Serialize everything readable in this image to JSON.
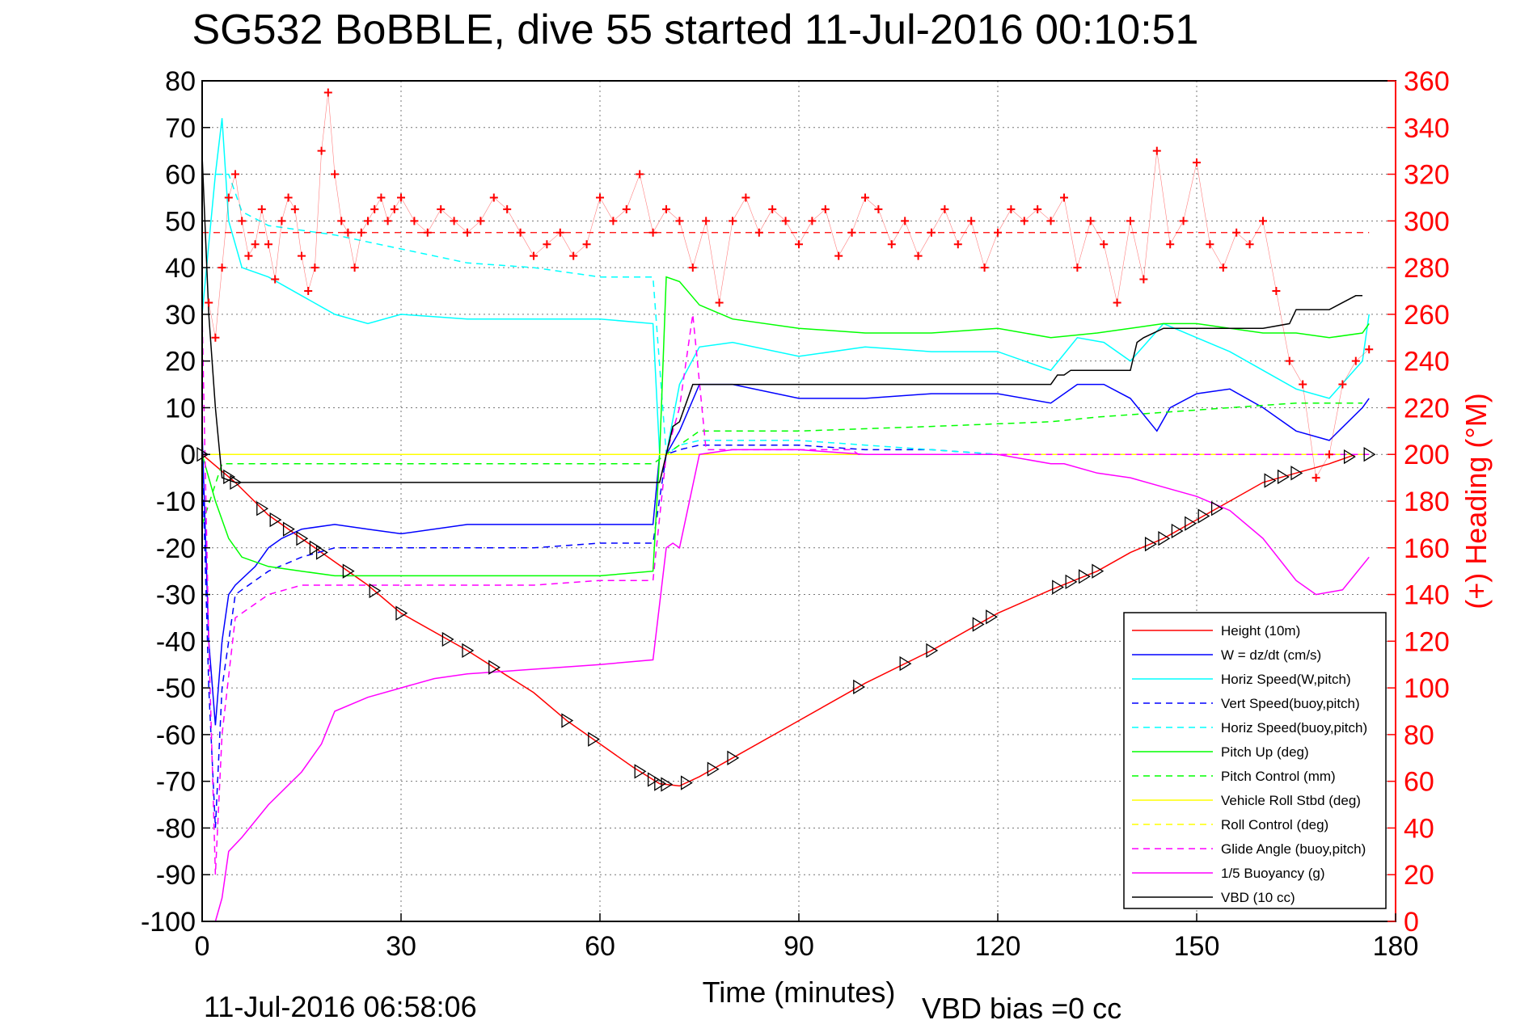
{
  "chart_data": {
    "type": "line",
    "title": "SG532 BoBBLE, dive 55 started 11-Jul-2016 00:10:51",
    "xlabel": "Time (minutes)",
    "ylabel_right": "(+) Heading (°M)",
    "xlim": [
      0,
      180
    ],
    "ylim": [
      -100,
      80
    ],
    "ylim_right": [
      0,
      360
    ],
    "x_ticks": [
      "0",
      "30",
      "60",
      "90",
      "120",
      "150",
      "180"
    ],
    "y_ticks": [
      "80",
      "70",
      "60",
      "50",
      "40",
      "30",
      "20",
      "10",
      "0",
      "-10",
      "-20",
      "-30",
      "-40",
      "-50",
      "-60",
      "-70",
      "-80",
      "-90",
      "-100"
    ],
    "y_right_ticks": [
      "360",
      "340",
      "320",
      "300",
      "280",
      "260",
      "240",
      "220",
      "200",
      "180",
      "160",
      "140",
      "120",
      "100",
      "80",
      "60",
      "40",
      "20",
      "0"
    ],
    "grid": true,
    "legend_position": "bottom-right",
    "footer_left": "11-Jul-2016 06:58:06",
    "footer_right": "VBD bias =0 cc",
    "series": [
      {
        "name": "Height (10m)",
        "color": "#ff0000",
        "dash": false,
        "x": [
          0,
          5,
          10,
          15,
          20,
          25,
          30,
          40,
          50,
          55,
          60,
          65,
          69,
          72,
          75,
          80,
          90,
          100,
          110,
          120,
          128,
          135,
          140,
          145,
          150,
          155,
          160,
          165,
          170,
          174,
          176
        ],
        "y": [
          0,
          -6,
          -13,
          -18,
          -23,
          -28,
          -34,
          -42,
          -51,
          -57,
          -62,
          -67,
          -70.5,
          -71,
          -69,
          -65,
          -57,
          -49,
          -42,
          -34,
          -29,
          -25,
          -21,
          -18,
          -14,
          -10,
          -6,
          -4,
          -2,
          0,
          0
        ]
      },
      {
        "name": "W = dz/dt (cm/s)",
        "color": "#0000ff",
        "dash": false,
        "x": [
          0,
          1,
          2,
          3,
          4,
          5,
          8,
          10,
          12,
          15,
          20,
          25,
          30,
          40,
          50,
          60,
          68,
          69,
          70,
          72,
          75,
          80,
          90,
          100,
          110,
          120,
          128,
          132,
          136,
          140,
          144,
          146,
          150,
          155,
          160,
          165,
          170,
          175,
          176
        ],
        "y": [
          5,
          -40,
          -58,
          -40,
          -30,
          -28,
          -24,
          -20,
          -18,
          -16,
          -15,
          -16,
          -17,
          -15,
          -15,
          -15,
          -15,
          0,
          0,
          5,
          15,
          15,
          12,
          12,
          13,
          13,
          11,
          15,
          15,
          12,
          5,
          10,
          13,
          14,
          10,
          5,
          3,
          10,
          12
        ]
      },
      {
        "name": "Horiz Speed(W,pitch)",
        "color": "#00ffff",
        "dash": false,
        "x": [
          0,
          2,
          3,
          4,
          6,
          10,
          15,
          20,
          25,
          30,
          40,
          50,
          60,
          68,
          69,
          70,
          72,
          75,
          80,
          90,
          100,
          110,
          120,
          128,
          132,
          136,
          140,
          145,
          150,
          155,
          160,
          165,
          170,
          175,
          176
        ],
        "y": [
          30,
          60,
          72,
          50,
          40,
          38,
          34,
          30,
          28,
          30,
          29,
          29,
          29,
          28,
          0,
          0,
          15,
          23,
          24,
          21,
          23,
          22,
          22,
          18,
          25,
          24,
          20,
          28,
          25,
          22,
          18,
          14,
          12,
          20,
          30
        ]
      },
      {
        "name": "Vert Speed(buoy,pitch)",
        "color": "#0000ff",
        "dash": true,
        "x": [
          0,
          1,
          2,
          3,
          5,
          10,
          15,
          20,
          30,
          40,
          50,
          60,
          68,
          70,
          72,
          75,
          80,
          90,
          100,
          110,
          120,
          128
        ],
        "y": [
          0,
          -50,
          -80,
          -50,
          -30,
          -25,
          -22,
          -20,
          -20,
          -20,
          -20,
          -19,
          -19,
          0,
          1,
          2,
          2,
          2,
          1,
          1,
          0,
          0
        ]
      },
      {
        "name": "Horiz Speed(buoy,pitch)",
        "color": "#00ffff",
        "dash": true,
        "x": [
          2,
          4,
          6,
          10,
          15,
          20,
          30,
          40,
          50,
          60,
          68,
          70,
          72,
          75,
          80,
          90,
          100,
          110,
          120,
          128
        ],
        "y": [
          60,
          60,
          52,
          49,
          48,
          47,
          44,
          41,
          40,
          38,
          38,
          0,
          2,
          3,
          3,
          3,
          2,
          1,
          0,
          0
        ]
      },
      {
        "name": "Pitch Up (deg)",
        "color": "#00ff00",
        "dash": false,
        "x": [
          0,
          2,
          4,
          6,
          10,
          15,
          20,
          30,
          40,
          50,
          60,
          68,
          69,
          70,
          72,
          75,
          80,
          90,
          100,
          110,
          120,
          128,
          135,
          140,
          145,
          150,
          155,
          160,
          165,
          170,
          175,
          176
        ],
        "y": [
          0,
          -10,
          -18,
          -22,
          -24,
          -25,
          -26,
          -26,
          -26,
          -26,
          -26,
          -25,
          0,
          38,
          37,
          32,
          29,
          27,
          26,
          26,
          27,
          25,
          26,
          27,
          28,
          28,
          27,
          26,
          26,
          25,
          26,
          28
        ]
      },
      {
        "name": "Pitch Control (mm)",
        "color": "#00ff00",
        "dash": true,
        "x": [
          0,
          3,
          10,
          20,
          30,
          40,
          50,
          60,
          68,
          70,
          75,
          90,
          110,
          128,
          135,
          145,
          155,
          165,
          175
        ],
        "y": [
          -15,
          -2,
          -2,
          -2,
          -2,
          -2,
          -2,
          -2,
          -2,
          0,
          5,
          5,
          6,
          7,
          8,
          9,
          10,
          11,
          11
        ]
      },
      {
        "name": "Vehicle Roll Stbd (deg)",
        "color": "#ffff00",
        "dash": false,
        "x": [
          0,
          5,
          10,
          20,
          30,
          40,
          50,
          60,
          70,
          80,
          90,
          100,
          110,
          120,
          130,
          140,
          150,
          160,
          170,
          176
        ],
        "y": [
          0,
          0,
          0,
          0,
          0,
          0,
          0,
          0,
          0,
          0,
          0,
          0,
          0,
          0,
          0,
          0,
          0,
          0,
          0,
          0
        ]
      },
      {
        "name": "Roll Control (deg)",
        "color": "#ffff00",
        "dash": true,
        "x": [
          0,
          176
        ],
        "y": [
          0,
          0
        ]
      },
      {
        "name": "Glide Angle (buoy,pitch)",
        "color": "#ff00ff",
        "dash": true,
        "x": [
          0,
          1,
          2,
          3,
          5,
          10,
          15,
          20,
          30,
          40,
          50,
          60,
          68,
          70,
          72,
          74,
          76,
          80,
          90,
          98,
          99,
          100,
          110,
          120,
          130,
          135,
          140,
          145,
          150,
          160,
          170,
          176
        ],
        "y": [
          30,
          -40,
          -90,
          -60,
          -35,
          -30,
          -28,
          -28,
          -28,
          -28,
          -28,
          -27,
          -27,
          0,
          10,
          30,
          1,
          1,
          1,
          1,
          0,
          0,
          0,
          0,
          0,
          0,
          0,
          0,
          0,
          0,
          0,
          0
        ]
      },
      {
        "name": "1/5 Buoyancy (g)",
        "color": "#ff00ff",
        "dash": false,
        "x": [
          2,
          3,
          4,
          6,
          10,
          15,
          18,
          20,
          25,
          30,
          35,
          40,
          50,
          60,
          68,
          69,
          70,
          71,
          72,
          75,
          80,
          90,
          100,
          110,
          120,
          128,
          130,
          135,
          140,
          145,
          150,
          155,
          160,
          165,
          168,
          172,
          176
        ],
        "y": [
          -100,
          -95,
          -85,
          -82,
          -75,
          -68,
          -62,
          -55,
          -52,
          -50,
          -48,
          -47,
          -46,
          -45,
          -44,
          -32,
          -20,
          -19,
          -20,
          0,
          1,
          1,
          0,
          0,
          0,
          -2,
          -2,
          -4,
          -5,
          -7,
          -9,
          -12,
          -18,
          -27,
          -30,
          -29,
          -22
        ]
      },
      {
        "name": "VBD (10 cc)",
        "color": "#000000",
        "dash": false,
        "x": [
          0,
          1,
          2,
          3,
          5,
          10,
          20,
          30,
          40,
          50,
          60,
          68,
          69,
          70,
          71,
          72,
          73,
          74,
          80,
          90,
          100,
          110,
          120,
          128,
          129,
          130,
          131,
          140,
          141,
          142,
          145,
          150,
          155,
          160,
          164,
          165,
          170,
          174,
          175
        ],
        "y": [
          64,
          30,
          10,
          -5,
          -6,
          -6,
          -6,
          -6,
          -6,
          -6,
          -6,
          -6,
          -6,
          0,
          6,
          7,
          11,
          15,
          15,
          15,
          15,
          15,
          15,
          15,
          17,
          17,
          18,
          18,
          24,
          25,
          27,
          27,
          27,
          27,
          28,
          31,
          31,
          34,
          34
        ]
      }
    ],
    "heading": {
      "name": "Heading",
      "color": "#ff0000",
      "marker": "+",
      "x": [
        1,
        2,
        3,
        4,
        5,
        6,
        7,
        8,
        9,
        10,
        11,
        12,
        13,
        14,
        15,
        16,
        17,
        18,
        19,
        20,
        21,
        22,
        23,
        24,
        25,
        26,
        27,
        28,
        29,
        30,
        32,
        34,
        36,
        38,
        40,
        42,
        44,
        46,
        48,
        50,
        52,
        54,
        56,
        58,
        60,
        62,
        64,
        66,
        68,
        70,
        72,
        74,
        76,
        78,
        80,
        82,
        84,
        86,
        88,
        90,
        92,
        94,
        96,
        98,
        100,
        102,
        104,
        106,
        108,
        110,
        112,
        114,
        116,
        118,
        120,
        122,
        124,
        126,
        128,
        130,
        132,
        134,
        136,
        138,
        140,
        142,
        144,
        146,
        148,
        150,
        152,
        154,
        156,
        158,
        160,
        162,
        164,
        166,
        168,
        170,
        172,
        174,
        176
      ],
      "y": [
        265,
        250,
        280,
        310,
        320,
        300,
        285,
        290,
        305,
        290,
        275,
        300,
        310,
        305,
        285,
        270,
        280,
        330,
        355,
        320,
        300,
        295,
        280,
        295,
        300,
        305,
        310,
        300,
        305,
        310,
        300,
        295,
        305,
        300,
        295,
        300,
        310,
        305,
        295,
        285,
        290,
        295,
        285,
        290,
        310,
        300,
        305,
        320,
        295,
        305,
        300,
        280,
        300,
        265,
        300,
        310,
        295,
        305,
        300,
        290,
        300,
        305,
        285,
        295,
        310,
        305,
        290,
        300,
        285,
        295,
        305,
        290,
        300,
        280,
        295,
        305,
        300,
        305,
        300,
        310,
        280,
        300,
        290,
        265,
        300,
        275,
        330,
        290,
        300,
        325,
        290,
        280,
        295,
        290,
        300,
        270,
        240,
        230,
        190,
        200,
        230,
        240,
        245
      ],
      "reference": 295
    },
    "height_markers_x": [
      0,
      4,
      5,
      9,
      11,
      13,
      15,
      17,
      18,
      22,
      26,
      30,
      37,
      40,
      44,
      55,
      59,
      66,
      68,
      69,
      70,
      73,
      77,
      80,
      99,
      106,
      110,
      117,
      119,
      129,
      131,
      133,
      135,
      143,
      145,
      147,
      149,
      151,
      153,
      161,
      163,
      165,
      173,
      176
    ]
  },
  "legend_entries": [
    "Height (10m)",
    "W = dz/dt (cm/s)",
    "Horiz Speed(W,pitch)",
    "Vert Speed(buoy,pitch)",
    "Horiz Speed(buoy,pitch)",
    "Pitch Up (deg)",
    "Pitch Control (mm)",
    "Vehicle Roll Stbd (deg)",
    "Roll Control (deg)",
    "Glide Angle (buoy,pitch)",
    "1/5 Buoyancy (g)",
    "VBD (10 cc)"
  ]
}
